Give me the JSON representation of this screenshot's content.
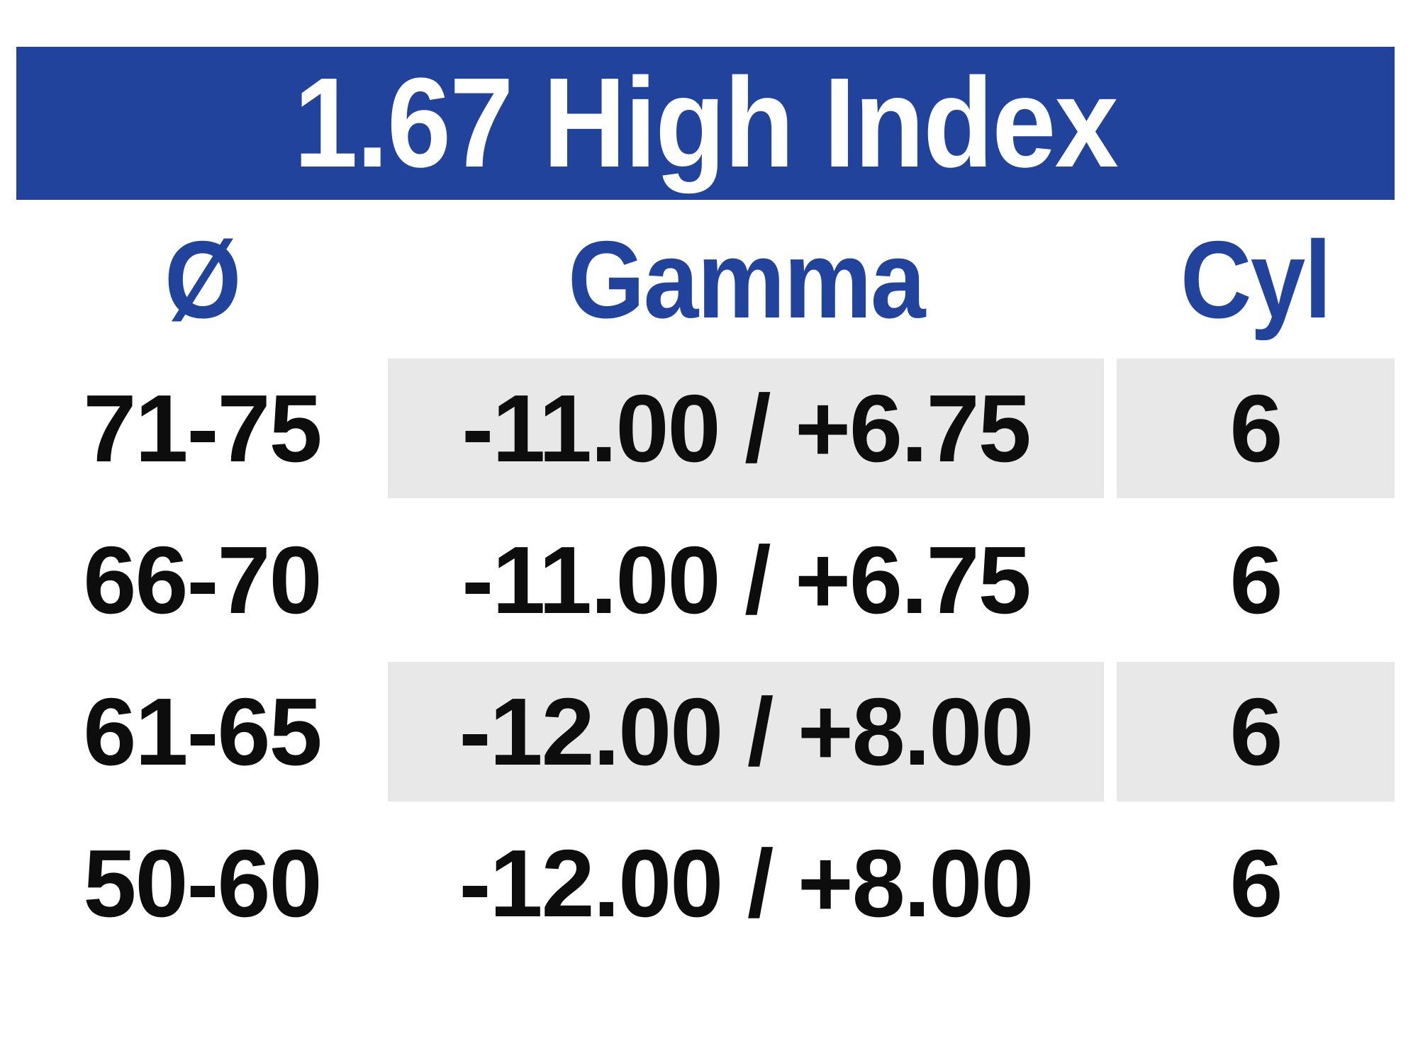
{
  "table": {
    "title": "1.67 High Index",
    "columns": [
      {
        "key": "diameter",
        "label": "Ø"
      },
      {
        "key": "gamma",
        "label": "Gamma"
      },
      {
        "key": "cyl",
        "label": "Cyl"
      }
    ],
    "rows": [
      {
        "diameter": "71-75",
        "gamma": "-11.00 / +6.75",
        "cyl": "6"
      },
      {
        "diameter": "66-70",
        "gamma": "-11.00 / +6.75",
        "cyl": "6"
      },
      {
        "diameter": "61-65",
        "gamma": "-12.00 / +8.00",
        "cyl": "6"
      },
      {
        "diameter": "50-60",
        "gamma": "-12.00 / +8.00",
        "cyl": "6"
      }
    ],
    "colors": {
      "banner_bg": "#21439B",
      "banner_text": "#FFFFFF",
      "header_text": "#21439B",
      "row_shade": "#E8E8E8",
      "body_text": "#0D0D0D"
    }
  }
}
